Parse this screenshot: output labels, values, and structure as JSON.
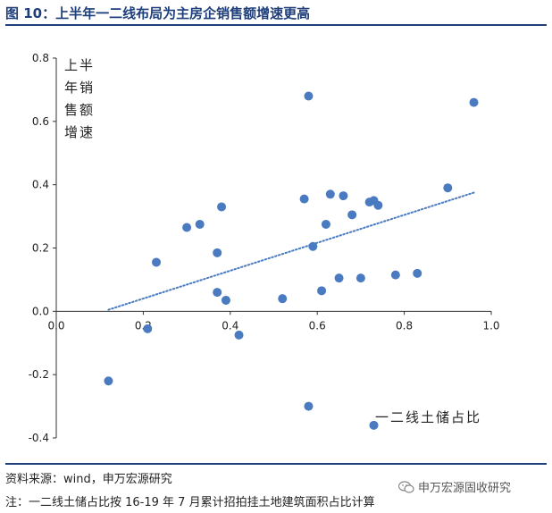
{
  "header": {
    "title": "图 10：上半年一二线布局为主房企销售额增速更高"
  },
  "footer": {
    "source": "资料来源：wind，申万宏源研究",
    "note": "注：一二线土储占比按 16-19 年 7 月累计招拍挂土地建筑面积占比计算"
  },
  "watermark": {
    "text": "申万宏源固收研究"
  },
  "colors": {
    "title": "#1f3f7a",
    "marker": "#4a7bc1",
    "trend": "#4a7bc1",
    "axis": "#333333"
  },
  "chart_data": {
    "type": "scatter",
    "title": "",
    "ylabel_lines": [
      "上半",
      "年销",
      "售额",
      "增速"
    ],
    "xlabel": "一二线土储占比",
    "xlim": [
      0.0,
      1.0
    ],
    "ylim": [
      -0.4,
      0.8
    ],
    "x_ticks": [
      "0.0",
      "0.2",
      "0.4",
      "0.6",
      "0.8",
      "1.0"
    ],
    "y_ticks": [
      "-0.4",
      "-0.2",
      "0.0",
      "0.2",
      "0.4",
      "0.6",
      "0.8"
    ],
    "grid": false,
    "trendline": {
      "style": "dotted",
      "x": [
        0.12,
        0.96
      ],
      "y": [
        0.005,
        0.375
      ]
    },
    "points": [
      {
        "x": 0.12,
        "y": -0.22
      },
      {
        "x": 0.21,
        "y": -0.055
      },
      {
        "x": 0.23,
        "y": 0.155
      },
      {
        "x": 0.3,
        "y": 0.265
      },
      {
        "x": 0.33,
        "y": 0.275
      },
      {
        "x": 0.37,
        "y": 0.185
      },
      {
        "x": 0.37,
        "y": 0.06
      },
      {
        "x": 0.38,
        "y": 0.33
      },
      {
        "x": 0.39,
        "y": 0.035
      },
      {
        "x": 0.42,
        "y": -0.075
      },
      {
        "x": 0.52,
        "y": 0.04
      },
      {
        "x": 0.57,
        "y": 0.355
      },
      {
        "x": 0.58,
        "y": 0.68
      },
      {
        "x": 0.58,
        "y": -0.3
      },
      {
        "x": 0.59,
        "y": 0.205
      },
      {
        "x": 0.61,
        "y": 0.065
      },
      {
        "x": 0.62,
        "y": 0.275
      },
      {
        "x": 0.63,
        "y": 0.37
      },
      {
        "x": 0.65,
        "y": 0.105
      },
      {
        "x": 0.66,
        "y": 0.365
      },
      {
        "x": 0.68,
        "y": 0.305
      },
      {
        "x": 0.7,
        "y": 0.105
      },
      {
        "x": 0.72,
        "y": 0.345
      },
      {
        "x": 0.73,
        "y": 0.35
      },
      {
        "x": 0.74,
        "y": 0.335
      },
      {
        "x": 0.73,
        "y": -0.36
      },
      {
        "x": 0.78,
        "y": 0.115
      },
      {
        "x": 0.83,
        "y": 0.12
      },
      {
        "x": 0.9,
        "y": 0.39
      },
      {
        "x": 0.96,
        "y": 0.66
      }
    ]
  }
}
